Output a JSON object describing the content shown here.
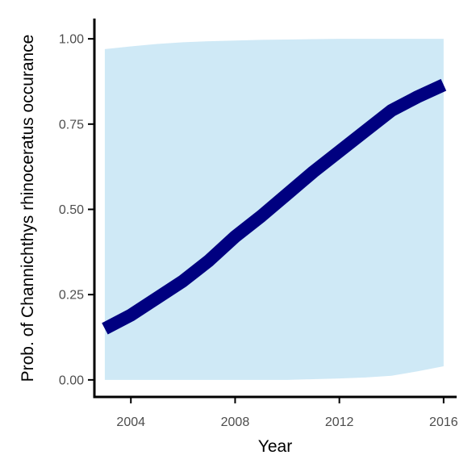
{
  "chart_data": {
    "type": "line",
    "title": "",
    "xlabel": "Year",
    "ylabel": "Prob. of  Channichthys rhinoceratus  occurance",
    "xlim": [
      2002.6,
      2016.5
    ],
    "ylim": [
      -0.05,
      1.05
    ],
    "x_ticks": [
      2004,
      2008,
      2012,
      2016
    ],
    "y_ticks": [
      0.0,
      0.25,
      0.5,
      0.75,
      1.0
    ],
    "x_tick_labels": [
      "2004",
      "2008",
      "2012",
      "2016"
    ],
    "y_tick_labels": [
      "0.00",
      "0.25",
      "0.50",
      "0.75",
      "1.00"
    ],
    "grid": false,
    "legend": "none",
    "colors": {
      "line": "#000080",
      "ribbon": "#cfe9f6",
      "axis": "#000000",
      "tick_label": "#4d4d4d"
    },
    "series": [
      {
        "x": [
          2003,
          2004,
          2005,
          2006,
          2007,
          2008,
          2009,
          2010,
          2011,
          2012,
          2013,
          2014,
          2015,
          2016
        ],
        "values": [
          0.15,
          0.19,
          0.24,
          0.29,
          0.35,
          0.42,
          0.48,
          0.545,
          0.61,
          0.67,
          0.73,
          0.79,
          0.83,
          0.865
        ],
        "lower": [
          0.0,
          0.0,
          0.0,
          0.0,
          0.0,
          0.0,
          0.0,
          0.0,
          0.002,
          0.004,
          0.007,
          0.012,
          0.025,
          0.04
        ],
        "upper": [
          0.97,
          0.978,
          0.985,
          0.99,
          0.993,
          0.995,
          0.997,
          0.998,
          0.999,
          1.0,
          1.0,
          1.0,
          1.0,
          1.0
        ]
      }
    ]
  }
}
